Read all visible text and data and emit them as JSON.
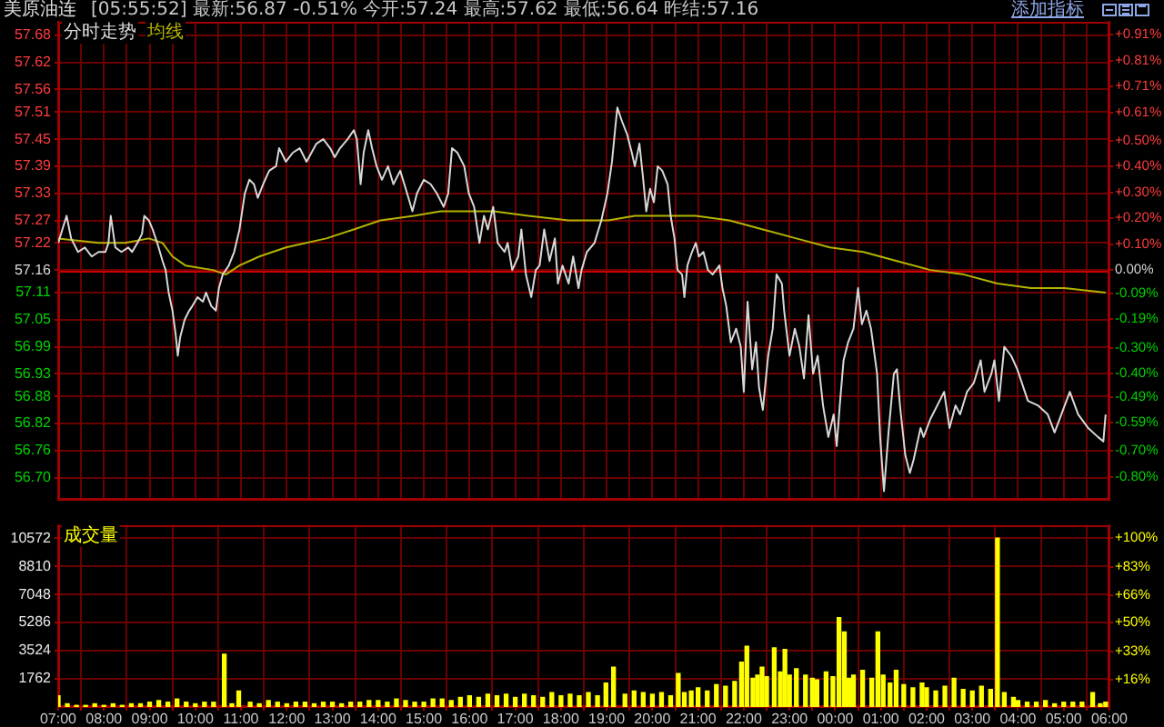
{
  "chart_data": [
    {
      "type": "line",
      "title": "美原油连",
      "subtitle": "[05:55:52]  最新:56.87 -0.51%  今开:57.24  最高:57.62  最低:56.64  昨结:57.16",
      "annotations": [
        "添加指标"
      ],
      "xlim": [
        "--01-01T07:00",
        "--01-02T06:00"
      ],
      "xticks": [
        {
          "value": "--01-01T07:00",
          "label": null
        },
        {
          "value": "--01-01T07:30",
          "label": null
        },
        {
          "value": "--01-01T08:00",
          "label": null
        },
        {
          "value": "--01-01T08:30",
          "label": null
        },
        {
          "value": "--01-01T09:00",
          "label": null
        },
        {
          "value": "--01-01T09:30",
          "label": null
        },
        {
          "value": "--01-01T10:00",
          "label": null
        },
        {
          "value": "--01-01T10:30",
          "label": null
        },
        {
          "value": "--01-01T11:00",
          "label": null
        },
        {
          "value": "--01-01T11:30",
          "label": null
        },
        {
          "value": "--01-01T12:00",
          "label": null
        },
        {
          "value": "--01-01T12:30",
          "label": null
        },
        {
          "value": "--01-01T13:00",
          "label": null
        },
        {
          "value": "--01-01T13:30",
          "label": null
        },
        {
          "value": "--01-01T14:00",
          "label": null
        },
        {
          "value": "--01-01T14:30",
          "label": null
        },
        {
          "value": "--01-01T15:00",
          "label": null
        },
        {
          "value": "--01-01T15:30",
          "label": null
        },
        {
          "value": "--01-01T16:00",
          "label": null
        },
        {
          "value": "--01-01T16:30",
          "label": null
        },
        {
          "value": "--01-01T17:00",
          "label": null
        },
        {
          "value": "--01-01T17:30",
          "label": null
        },
        {
          "value": "--01-01T18:00",
          "label": null
        },
        {
          "value": "--01-01T18:30",
          "label": null
        },
        {
          "value": "--01-01T19:00",
          "label": null
        },
        {
          "value": "--01-01T19:30",
          "label": null
        },
        {
          "value": "--01-01T20:00",
          "label": null
        },
        {
          "value": "--01-01T20:30",
          "label": null
        },
        {
          "value": "--01-01T21:00",
          "label": null
        },
        {
          "value": "--01-01T21:30",
          "label": null
        },
        {
          "value": "--01-01T22:00",
          "label": null
        },
        {
          "value": "--01-01T22:30",
          "label": null
        },
        {
          "value": "--01-01T23:00",
          "label": null
        },
        {
          "value": "--01-01T23:30",
          "label": null
        },
        {
          "value": "--01-02T00:00",
          "label": null
        },
        {
          "value": "--01-02T00:30",
          "label": null
        },
        {
          "value": "--01-02T01:00",
          "label": null
        },
        {
          "value": "--01-02T01:30",
          "label": null
        },
        {
          "value": "--01-02T02:00",
          "label": null
        },
        {
          "value": "--01-02T02:30",
          "label": null
        },
        {
          "value": "--01-02T03:00",
          "label": null
        },
        {
          "value": "--01-02T03:30",
          "label": null
        },
        {
          "value": "--01-02T04:00",
          "label": null
        },
        {
          "value": "--01-02T04:30",
          "label": null
        },
        {
          "value": "--01-02T05:00",
          "label": null
        },
        {
          "value": "--01-02T05:30",
          "label": null
        },
        {
          "value": "--01-02T06:00",
          "label": null
        }
      ],
      "ylim": [
        56.65,
        57.71
      ],
      "yticks": [
        {
          "value": 56.7,
          "label": "56.70"
        },
        56.76,
        56.82,
        56.88,
        56.93,
        56.99,
        57.05,
        57.11,
        57.16,
        57.22,
        57.27,
        57.33,
        57.39,
        57.45,
        57.51,
        57.56,
        57.62,
        57.68
      ],
      "y2lim": [
        -0.89,
        0.96
      ],
      "y2ticks": [
        {
          "value": -0.8,
          "label": "-0.80%"
        },
        {
          "value": -0.7,
          "label": "-0.70%"
        },
        {
          "value": -0.59,
          "label": "-0.59%"
        },
        {
          "value": -0.49,
          "label": "-0.49%"
        },
        {
          "value": -0.4,
          "label": "-0.40%"
        },
        {
          "value": -0.3,
          "label": "-0.30%"
        },
        {
          "value": -0.19,
          "label": "-0.19%"
        },
        {
          "value": -0.09,
          "label": "-0.09%"
        },
        {
          "value": 0,
          "label": "0.00%"
        },
        {
          "value": 0.1,
          "label": "+0.10%"
        },
        {
          "value": 0.2,
          "label": "+0.20%"
        },
        {
          "value": 0.3,
          "label": "+0.30%"
        },
        {
          "value": 0.4,
          "label": "+0.40%"
        },
        {
          "value": 0.5,
          "label": "+0.50%"
        },
        {
          "value": 0.61,
          "label": "+0.61%"
        },
        {
          "value": 0.71,
          "label": "+0.71%"
        },
        {
          "value": 0.81,
          "label": "+0.81%"
        },
        {
          "value": 0.91,
          "label": "+0.91%"
        }
      ],
      "tick_labels": "y",
      "grid": true,
      "legend": "top left",
      "ref_lines": [
        {
          "axis": "y",
          "value": 57.16,
          "color": "#c80000"
        }
      ],
      "series": [
        {
          "name": "分时走势",
          "color": "#d8d8d8",
          "x": [
            "--01-01T07:00",
            "--01-01T07:11",
            "--01-01T07:17",
            "--01-01T07:26",
            "--01-01T07:35",
            "--01-01T07:44",
            "--01-01T07:53",
            "--01-01T08:02",
            "--01-01T08:06",
            "--01-01T08:09",
            "--01-01T08:15",
            "--01-01T08:23",
            "--01-01T08:32",
            "--01-01T08:37",
            "--01-01T08:44",
            "--01-01T08:50",
            "--01-01T08:53",
            "--01-01T08:59",
            "--01-01T09:04",
            "--01-01T09:10",
            "--01-01T09:17",
            "--01-01T09:21",
            "--01-01T09:25",
            "--01-01T09:30",
            "--01-01T09:34",
            "--01-01T09:37",
            "--01-01T09:40",
            "--01-01T09:46",
            "--01-01T09:52",
            "--01-01T09:56",
            "--01-01T10:03",
            "--01-01T10:10",
            "--01-01T10:14",
            "--01-01T10:21",
            "--01-01T10:27",
            "--01-01T10:31",
            "--01-01T10:36",
            "--01-01T10:44",
            "--01-01T10:51",
            "--01-01T10:58",
            "--01-01T11:05",
            "--01-01T11:11",
            "--01-01T11:17",
            "--01-01T11:22",
            "--01-01T11:29",
            "--01-01T11:37",
            "--01-01T11:46",
            "--01-01T11:50",
            "--01-01T11:59",
            "--01-01T12:08",
            "--01-01T12:17",
            "--01-01T12:26",
            "--01-01T12:39",
            "--01-01T12:48",
            "--01-01T12:57",
            "--01-01T13:03",
            "--01-01T13:10",
            "--01-01T13:20",
            "--01-01T13:28",
            "--01-01T13:32",
            "--01-01T13:37",
            "--01-01T13:41",
            "--01-01T13:47",
            "--01-01T13:52",
            "--01-01T13:58",
            "--01-01T14:05",
            "--01-01T14:13",
            "--01-01T14:20",
            "--01-01T14:29",
            "--01-01T14:38",
            "--01-01T14:45",
            "--01-01T14:51",
            "--01-01T15:00",
            "--01-01T15:09",
            "--01-01T15:17",
            "--01-01T15:26",
            "--01-01T15:32",
            "--01-01T15:37",
            "--01-01T15:44",
            "--01-01T15:53",
            "--01-01T15:59",
            "--01-01T16:06",
            "--01-01T16:13",
            "--01-01T16:19",
            "--01-01T16:24",
            "--01-01T16:31",
            "--01-01T16:37",
            "--01-01T16:46",
            "--01-01T16:50",
            "--01-01T16:56",
            "--01-01T17:04",
            "--01-01T17:08",
            "--01-01T17:14",
            "--01-01T17:21",
            "--01-01T17:27",
            "--01-01T17:32",
            "--01-01T17:38",
            "--01-01T17:45",
            "--01-01T17:52",
            "--01-01T17:56",
            "--01-01T18:02",
            "--01-01T18:10",
            "--01-01T18:16",
            "--01-01T18:23",
            "--01-01T18:27",
            "--01-01T18:34",
            "--01-01T18:44",
            "--01-01T18:53",
            "--01-01T19:01",
            "--01-01T19:07",
            "--01-01T19:11",
            "--01-01T19:14",
            "--01-01T19:20",
            "--01-01T19:27",
            "--01-01T19:33",
            "--01-01T19:37",
            "--01-01T19:43",
            "--01-01T19:48",
            "--01-01T19:52",
            "--01-01T19:57",
            "--01-01T20:02",
            "--01-01T20:07",
            "--01-01T20:13",
            "--01-01T20:20",
            "--01-01T20:24",
            "--01-01T20:29",
            "--01-01T20:33",
            "--01-01T20:39",
            "--01-01T20:42",
            "--01-01T20:46",
            "--01-01T20:52",
            "--01-01T20:57",
            "--01-01T21:01",
            "--01-01T21:07",
            "--01-01T21:13",
            "--01-01T21:19",
            "--01-01T21:28",
            "--01-01T21:32",
            "--01-01T21:37",
            "--01-01T21:43",
            "--01-01T21:50",
            "--01-01T21:56",
            "--01-01T22:00",
            "--01-01T22:05",
            "--01-01T22:11",
            "--01-01T22:16",
            "--01-01T22:20",
            "--01-01T22:25",
            "--01-01T22:32",
            "--01-01T22:38",
            "--01-01T22:43",
            "--01-01T22:50",
            "--01-01T22:53",
            "--01-01T23:00",
            "--01-01T23:07",
            "--01-01T23:13",
            "--01-01T23:19",
            "--01-01T23:25",
            "--01-01T23:31",
            "--01-01T23:37",
            "--01-01T23:44",
            "--01-01T23:51",
            "--01-01T23:58",
            "--01-02T00:02",
            "--01-02T00:06",
            "--01-02T00:11",
            "--01-02T00:17",
            "--01-02T00:24",
            "--01-02T00:30",
            "--01-02T00:35",
            "--01-02T00:41",
            "--01-02T00:47",
            "--01-02T00:55",
            "--01-02T00:59",
            "--01-02T01:04",
            "--01-02T01:10",
            "--01-02T01:17",
            "--01-02T01:21",
            "--01-02T01:25",
            "--01-02T01:32",
            "--01-02T01:38",
            "--01-02T01:43",
            "--01-02T01:52",
            "--01-02T01:56",
            "--01-02T02:05",
            "--01-02T02:14",
            "--01-02T02:23",
            "--01-02T02:30",
            "--01-02T02:38",
            "--01-02T02:44",
            "--01-02T02:53",
            "--01-02T03:02",
            "--01-02T03:11",
            "--01-02T03:16",
            "--01-02T03:25",
            "--01-02T03:29",
            "--01-02T03:35",
            "--01-02T03:42",
            "--01-02T03:51",
            "--01-02T03:59",
            "--01-02T04:13",
            "--01-02T04:26",
            "--01-02T04:39",
            "--01-02T04:48",
            "--01-02T05:08",
            "--01-02T05:19",
            "--01-02T05:32",
            "--01-02T05:45",
            "--01-02T05:52",
            "--01-02T05:55"
          ],
          "values": [
            57.22,
            57.28,
            57.23,
            57.2,
            57.21,
            57.19,
            57.2,
            57.2,
            57.22,
            57.28,
            57.21,
            57.2,
            57.21,
            57.2,
            57.22,
            57.24,
            57.28,
            57.27,
            57.25,
            57.22,
            57.18,
            57.16,
            57.11,
            57.07,
            57.02,
            56.97,
            57.01,
            57.05,
            57.07,
            57.08,
            57.1,
            57.09,
            57.11,
            57.08,
            57.07,
            57.12,
            57.15,
            57.17,
            57.2,
            57.25,
            57.33,
            57.36,
            57.35,
            57.32,
            57.35,
            57.38,
            57.39,
            57.43,
            57.4,
            57.42,
            57.43,
            57.4,
            57.44,
            57.45,
            57.43,
            57.41,
            57.43,
            57.45,
            57.47,
            57.45,
            57.35,
            57.42,
            57.47,
            57.43,
            57.39,
            57.36,
            57.39,
            57.35,
            57.38,
            57.33,
            57.29,
            57.33,
            57.36,
            57.35,
            57.33,
            57.3,
            57.33,
            57.43,
            57.42,
            57.39,
            57.33,
            57.3,
            57.22,
            57.28,
            57.25,
            57.3,
            57.22,
            57.2,
            57.22,
            57.16,
            57.19,
            57.25,
            57.15,
            57.1,
            57.16,
            57.17,
            57.25,
            57.18,
            57.23,
            57.13,
            57.17,
            57.13,
            57.19,
            57.12,
            57.16,
            57.2,
            57.22,
            57.27,
            57.33,
            57.4,
            57.47,
            57.52,
            57.49,
            57.46,
            57.42,
            57.39,
            57.44,
            57.36,
            57.29,
            57.34,
            57.31,
            57.39,
            57.38,
            57.35,
            57.28,
            57.23,
            57.16,
            57.15,
            57.1,
            57.17,
            57.2,
            57.22,
            57.19,
            57.2,
            57.16,
            57.15,
            57.17,
            57.12,
            57.08,
            57.0,
            57.03,
            56.99,
            56.89,
            57.09,
            56.94,
            57.0,
            56.9,
            56.85,
            56.97,
            57.03,
            57.15,
            57.13,
            57.07,
            56.97,
            57.03,
            56.99,
            56.92,
            57.06,
            56.93,
            56.97,
            56.86,
            56.79,
            56.84,
            56.77,
            56.86,
            56.96,
            57.0,
            57.03,
            57.12,
            57.04,
            57.07,
            57.03,
            56.93,
            56.79,
            56.67,
            56.8,
            56.93,
            56.94,
            56.86,
            56.75,
            56.71,
            56.74,
            56.81,
            56.79,
            56.83,
            56.86,
            56.89,
            56.81,
            56.86,
            56.84,
            56.89,
            56.91,
            56.96,
            56.89,
            56.93,
            56.96,
            56.87,
            56.99,
            56.97,
            56.94,
            56.87,
            56.86,
            56.84,
            56.8,
            56.89,
            56.84,
            56.81,
            56.79,
            56.78,
            56.84
          ]
        },
        {
          "name": "均线",
          "color": "#b4b400",
          "x": [
            "--01-01T07:00",
            "--01-01T07:53",
            "--01-01T08:28",
            "--01-01T08:59",
            "--01-01T09:17",
            "--01-01T09:30",
            "--01-01T09:47",
            "--01-01T10:23",
            "--01-01T10:40",
            "--01-01T10:58",
            "--01-01T11:24",
            "--01-01T11:59",
            "--01-01T12:52",
            "--01-01T13:28",
            "--01-01T14:03",
            "--01-01T14:47",
            "--01-01T15:22",
            "--01-01T15:57",
            "--01-01T16:32",
            "--01-01T17:17",
            "--01-01T18:10",
            "--01-01T18:44",
            "--01-01T19:02",
            "--01-01T19:37",
            "--01-01T20:13",
            "--01-01T20:57",
            "--01-01T21:41",
            "--01-01T22:25",
            "--01-01T23:09",
            "--01-01T23:53",
            "--01-02T00:37",
            "--01-02T01:21",
            "--01-02T02:05",
            "--01-02T02:49",
            "--01-02T03:33",
            "--01-02T04:17",
            "--01-02T05:01",
            "--01-02T05:55"
          ],
          "values": [
            57.23,
            57.22,
            57.22,
            57.23,
            57.22,
            57.19,
            57.17,
            57.16,
            57.15,
            57.17,
            57.19,
            57.21,
            57.23,
            57.25,
            57.27,
            57.28,
            57.29,
            57.29,
            57.29,
            57.28,
            57.27,
            57.27,
            57.27,
            57.28,
            57.28,
            57.28,
            57.27,
            57.25,
            57.23,
            57.21,
            57.2,
            57.18,
            57.16,
            57.15,
            57.13,
            57.12,
            57.12,
            57.11
          ]
        }
      ]
    },
    {
      "type": "bar",
      "xlim": [
        "--01-01T07:00",
        "--01-02T06:00"
      ],
      "xticks": [
        {
          "value": "--01-01T07:00",
          "label": "07:00"
        },
        {
          "value": "--01-01T07:30",
          "label": null
        },
        {
          "value": "--01-01T08:00",
          "label": "08:00"
        },
        {
          "value": "--01-01T08:30",
          "label": null
        },
        {
          "value": "--01-01T09:00",
          "label": "09:00"
        },
        {
          "value": "--01-01T09:30",
          "label": null
        },
        {
          "value": "--01-01T10:00",
          "label": "10:00"
        },
        {
          "value": "--01-01T10:30",
          "label": null
        },
        {
          "value": "--01-01T11:00",
          "label": "11:00"
        },
        {
          "value": "--01-01T11:30",
          "label": null
        },
        {
          "value": "--01-01T12:00",
          "label": "12:00"
        },
        {
          "value": "--01-01T12:30",
          "label": null
        },
        {
          "value": "--01-01T13:00",
          "label": "13:00"
        },
        {
          "value": "--01-01T13:30",
          "label": null
        },
        {
          "value": "--01-01T14:00",
          "label": "14:00"
        },
        {
          "value": "--01-01T14:30",
          "label": null
        },
        {
          "value": "--01-01T15:00",
          "label": "15:00"
        },
        {
          "value": "--01-01T15:30",
          "label": null
        },
        {
          "value": "--01-01T16:00",
          "label": "16:00"
        },
        {
          "value": "--01-01T16:30",
          "label": null
        },
        {
          "value": "--01-01T17:00",
          "label": "17:00"
        },
        {
          "value": "--01-01T17:30",
          "label": null
        },
        {
          "value": "--01-01T18:00",
          "label": "18:00"
        },
        {
          "value": "--01-01T18:30",
          "label": null
        },
        {
          "value": "--01-01T19:00",
          "label": "19:00"
        },
        {
          "value": "--01-01T19:30",
          "label": null
        },
        {
          "value": "--01-01T20:00",
          "label": "20:00"
        },
        {
          "value": "--01-01T20:30",
          "label": null
        },
        {
          "value": "--01-01T21:00",
          "label": "21:00"
        },
        {
          "value": "--01-01T21:30",
          "label": null
        },
        {
          "value": "--01-01T22:00",
          "label": "22:00"
        },
        {
          "value": "--01-01T22:30",
          "label": null
        },
        {
          "value": "--01-01T23:00",
          "label": "23:00"
        },
        {
          "value": "--01-01T23:30",
          "label": null
        },
        {
          "value": "--01-02T00:00",
          "label": "00:00"
        },
        {
          "value": "--01-02T00:30",
          "label": null
        },
        {
          "value": "--01-02T01:00",
          "label": "01:00"
        },
        {
          "value": "--01-02T01:30",
          "label": null
        },
        {
          "value": "--01-02T02:00",
          "label": "02:00"
        },
        {
          "value": "--01-02T02:30",
          "label": null
        },
        {
          "value": "--01-02T03:00",
          "label": "03:00"
        },
        {
          "value": "--01-02T03:30",
          "label": null
        },
        {
          "value": "--01-02T04:00",
          "label": "04:00"
        },
        {
          "value": "--01-02T04:30",
          "label": null
        },
        {
          "value": "--01-02T05:00",
          "label": "05:00"
        },
        {
          "value": "--01-02T05:30",
          "label": null
        },
        {
          "value": "--01-02T06:00",
          "label": "06:00"
        }
      ],
      "ylim": [
        0,
        11400
      ],
      "yticks": [
        1762,
        3524,
        5286,
        7048,
        8810,
        10572
      ],
      "y2lim": [
        0,
        107.8
      ],
      "y2ticks": [
        {
          "value": 16,
          "label": "+16%"
        },
        {
          "value": 33,
          "label": "+33%"
        },
        {
          "value": 50,
          "label": "+50%"
        },
        {
          "value": 66,
          "label": "+66%"
        },
        {
          "value": 83,
          "label": "+83%"
        },
        {
          "value": 100,
          "label": "+100%"
        }
      ],
      "grid": true,
      "legend": "top left",
      "series": [
        {
          "name": "成交量",
          "color": "#ffff00",
          "x": [
            "--01-01T07:00",
            "--01-01T07:12",
            "--01-01T07:24",
            "--01-01T07:36",
            "--01-01T07:48",
            "--01-01T08:00",
            "--01-01T08:12",
            "--01-01T08:24",
            "--01-01T08:36",
            "--01-01T08:48",
            "--01-01T09:00",
            "--01-01T09:12",
            "--01-01T09:24",
            "--01-01T09:36",
            "--01-01T09:48",
            "--01-01T10:00",
            "--01-01T10:12",
            "--01-01T10:24",
            "--01-01T10:38",
            "--01-01T10:48",
            "--01-01T10:57",
            "--01-01T11:12",
            "--01-01T11:24",
            "--01-01T11:36",
            "--01-01T11:48",
            "--01-01T12:00",
            "--01-01T12:12",
            "--01-01T12:24",
            "--01-01T12:36",
            "--01-01T12:48",
            "--01-01T13:00",
            "--01-01T13:12",
            "--01-01T13:24",
            "--01-01T13:36",
            "--01-01T13:48",
            "--01-01T14:00",
            "--01-01T14:12",
            "--01-01T14:24",
            "--01-01T14:36",
            "--01-01T14:48",
            "--01-01T15:00",
            "--01-01T15:12",
            "--01-01T15:24",
            "--01-01T15:36",
            "--01-01T15:48",
            "--01-01T16:00",
            "--01-01T16:12",
            "--01-01T16:24",
            "--01-01T16:36",
            "--01-01T16:48",
            "--01-01T17:00",
            "--01-01T17:12",
            "--01-01T17:24",
            "--01-01T17:36",
            "--01-01T17:48",
            "--01-01T18:00",
            "--01-01T18:12",
            "--01-01T18:24",
            "--01-01T18:36",
            "--01-01T18:48",
            "--01-01T18:59",
            "--01-01T19:09",
            "--01-01T19:24",
            "--01-01T19:36",
            "--01-01T19:48",
            "--01-01T20:00",
            "--01-01T20:12",
            "--01-01T20:24",
            "--01-01T20:34",
            "--01-01T20:42",
            "--01-01T20:51",
            "--01-01T21:00",
            "--01-01T21:12",
            "--01-01T21:24",
            "--01-01T21:36",
            "--01-01T21:48",
            "--01-01T21:57",
            "--01-01T22:04",
            "--01-01T22:12",
            "--01-01T22:18",
            "--01-01T22:24",
            "--01-01T22:30",
            "--01-01T22:40",
            "--01-01T22:48",
            "--01-01T22:54",
            "--01-01T23:00",
            "--01-01T23:09",
            "--01-01T23:21",
            "--01-01T23:30",
            "--01-01T23:36",
            "--01-01T23:48",
            "--01-01T23:57",
            "--01-02T00:05",
            "--01-02T00:12",
            "--01-02T00:18",
            "--01-02T00:24",
            "--01-02T00:36",
            "--01-02T00:48",
            "--01-02T00:56",
            "--01-02T01:03",
            "--01-02T01:12",
            "--01-02T01:20",
            "--01-02T01:30",
            "--01-02T01:42",
            "--01-02T01:54",
            "--01-02T02:00",
            "--01-02T02:12",
            "--01-02T02:24",
            "--01-02T02:36",
            "--01-02T02:48",
            "--01-02T03:00",
            "--01-02T03:12",
            "--01-02T03:24",
            "--01-02T03:33",
            "--01-02T03:42",
            "--01-02T03:54",
            "--01-02T04:00",
            "--01-02T04:12",
            "--01-02T04:24",
            "--01-02T04:36",
            "--01-02T04:48",
            "--01-02T05:00",
            "--01-02T05:12",
            "--01-02T05:24",
            "--01-02T05:38",
            "--01-02T05:48",
            "--01-02T05:55"
          ],
          "values": [
            700,
            200,
            100,
            100,
            200,
            100,
            200,
            100,
            200,
            200,
            300,
            400,
            300,
            500,
            300,
            200,
            300,
            300,
            3300,
            200,
            1000,
            300,
            200,
            400,
            300,
            200,
            300,
            300,
            200,
            300,
            300,
            200,
            300,
            300,
            400,
            400,
            300,
            500,
            400,
            300,
            300,
            500,
            500,
            400,
            600,
            700,
            600,
            800,
            700,
            800,
            600,
            800,
            700,
            600,
            900,
            700,
            800,
            700,
            900,
            700,
            1500,
            2500,
            800,
            1000,
            900,
            800,
            900,
            700,
            2100,
            900,
            1000,
            1200,
            1000,
            1400,
            1300,
            1600,
            2800,
            3800,
            1800,
            2000,
            2500,
            1900,
            3700,
            2200,
            3600,
            2000,
            2400,
            2000,
            1800,
            1700,
            2200,
            1900,
            5600,
            4700,
            1800,
            2000,
            2300,
            1800,
            4700,
            2000,
            1500,
            2300,
            1400,
            1200,
            1500,
            1200,
            1000,
            1300,
            1800,
            1100,
            1000,
            1300,
            1100,
            10572,
            900,
            600,
            400,
            300,
            300,
            400,
            200,
            300,
            300,
            300,
            900,
            200,
            300
          ]
        }
      ]
    }
  ]
}
